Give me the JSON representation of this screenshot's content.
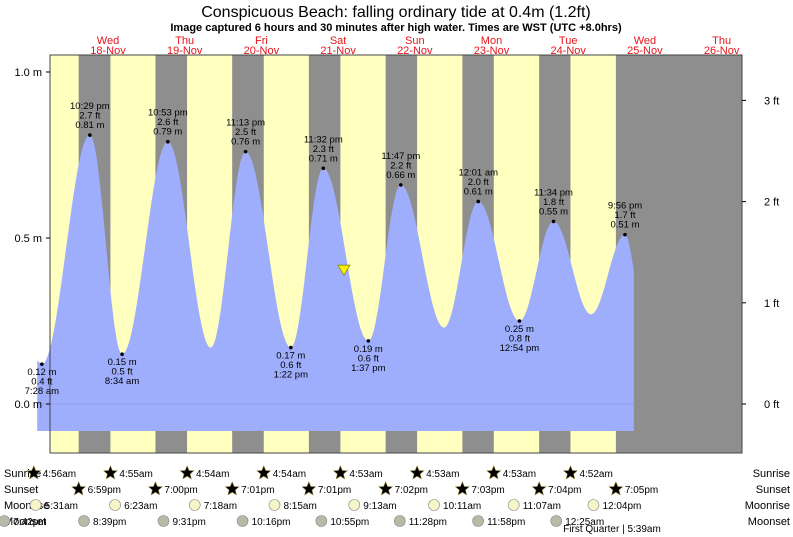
{
  "chart_data": {
    "type": "area",
    "title": "Conspicuous Beach: falling  ordinary tide at 0.4m (1.2ft)",
    "subtitle": "Image captured 6 hours and 30 minutes after high water. Times are WST (UTC +8.0hrs)",
    "y_left_ticks": [
      {
        "value": 1.0,
        "label": "1.0 m"
      },
      {
        "value": 0.5,
        "label": "0.5 m"
      },
      {
        "value": 0.0,
        "label": "0.0 m"
      }
    ],
    "y_right_ticks": [
      {
        "value": 0.9144,
        "label": "3 ft"
      },
      {
        "value": 0.6096,
        "label": "2 ft"
      },
      {
        "value": 0.3048,
        "label": "1 ft"
      },
      {
        "value": 0.0,
        "label": "0 ft"
      }
    ],
    "ylim": [
      -0.08,
      1.04
    ],
    "days": [
      {
        "day": "Wed",
        "date": "18-Nov"
      },
      {
        "day": "Thu",
        "date": "19-Nov"
      },
      {
        "day": "Fri",
        "date": "20-Nov"
      },
      {
        "day": "Sat",
        "date": "21-Nov"
      },
      {
        "day": "Sun",
        "date": "22-Nov"
      },
      {
        "day": "Mon",
        "date": "23-Nov"
      },
      {
        "day": "Tue",
        "date": "24-Nov"
      },
      {
        "day": "Wed",
        "date": "25-Nov"
      },
      {
        "day": "Thu",
        "date": "26-Nov"
      }
    ],
    "tide_events": [
      {
        "type": "low",
        "day": 0,
        "time": "7:28 am",
        "height_m": "0.12 m",
        "height_ft": "0.4 ft",
        "m": 0.12,
        "hour": 7.47
      },
      {
        "type": "high",
        "day": 0,
        "time": "10:29 pm",
        "height_m": "0.81 m",
        "height_ft": "2.7 ft",
        "m": 0.81,
        "hour": 22.48
      },
      {
        "type": "low",
        "day": 1,
        "time": "8:34 am",
        "height_m": "0.15 m",
        "height_ft": "0.5 ft",
        "m": 0.15,
        "hour": 8.57
      },
      {
        "type": "high",
        "day": 1,
        "time": "10:53 pm",
        "height_m": "0.79 m",
        "height_ft": "2.6 ft",
        "m": 0.79,
        "hour": 22.88
      },
      {
        "type": "high",
        "day": 2,
        "time": "11:13 pm",
        "height_m": "0.76 m",
        "height_ft": "2.5 ft",
        "m": 0.76,
        "hour": 23.22
      },
      {
        "type": "low",
        "day": 3,
        "time": "1:22 pm",
        "height_m": "0.17 m",
        "height_ft": "0.6 ft",
        "m": 0.17,
        "hour": 13.37
      },
      {
        "type": "high",
        "day": 3,
        "time": "11:32 pm",
        "height_m": "0.71 m",
        "height_ft": "2.3 ft",
        "m": 0.71,
        "hour": 23.53
      },
      {
        "type": "low",
        "day": 4,
        "time": "1:37 pm",
        "height_m": "0.19 m",
        "height_ft": "0.6 ft",
        "m": 0.19,
        "hour": 13.62
      },
      {
        "type": "high",
        "day": 4,
        "time": "11:47 pm",
        "height_m": "0.66 m",
        "height_ft": "2.2 ft",
        "m": 0.66,
        "hour": 23.78
      },
      {
        "type": "high",
        "day": 6,
        "time": "12:01 am",
        "height_m": "0.61 m",
        "height_ft": "2.0 ft",
        "m": 0.61,
        "hour": 0.02
      },
      {
        "type": "low",
        "day": 6,
        "time": "12:54 pm",
        "height_m": "0.25 m",
        "height_ft": "0.8 ft",
        "m": 0.25,
        "hour": 12.9
      },
      {
        "type": "high",
        "day": 6,
        "time": "11:34 pm",
        "height_m": "0.55 m",
        "height_ft": "1.8 ft",
        "m": 0.55,
        "hour": 23.57
      },
      {
        "type": "high",
        "day": 7,
        "time": "9:56 pm",
        "height_m": "0.51 m",
        "height_ft": "1.7 ft",
        "m": 0.51,
        "hour": 21.93
      }
    ],
    "extra_extrema": [
      {
        "type": "low",
        "day": 2,
        "hour": 12.3,
        "m": 0.17
      },
      {
        "type": "low",
        "day": 5,
        "hour": 13.3,
        "m": 0.23
      },
      {
        "type": "low",
        "day": 7,
        "hour": 11.3,
        "m": 0.27
      }
    ],
    "current": {
      "m": 0.4,
      "day": 4,
      "hour": 6.0
    },
    "series_start": {
      "day": 0,
      "hour": 6.0,
      "m": 0.13
    },
    "series_end": {
      "day": 7,
      "hour": 24.7,
      "m": 0.4
    },
    "rows": [
      {
        "label": "Sunrise",
        "kind": "sunrise",
        "items": [
          {
            "day": 0,
            "time": "4:56am",
            "hour": 4.93
          },
          {
            "day": 1,
            "time": "4:55am",
            "hour": 4.92
          },
          {
            "day": 2,
            "time": "4:54am",
            "hour": 4.9
          },
          {
            "day": 3,
            "time": "4:54am",
            "hour": 4.9
          },
          {
            "day": 4,
            "time": "4:53am",
            "hour": 4.88
          },
          {
            "day": 5,
            "time": "4:53am",
            "hour": 4.88
          },
          {
            "day": 6,
            "time": "4:53am",
            "hour": 4.88
          },
          {
            "day": 7,
            "time": "4:52am",
            "hour": 4.87
          }
        ]
      },
      {
        "label": "Sunset",
        "kind": "sunset",
        "items": [
          {
            "day": 0,
            "time": "6:59pm",
            "hour": 18.98
          },
          {
            "day": 1,
            "time": "7:00pm",
            "hour": 19.0
          },
          {
            "day": 2,
            "time": "7:01pm",
            "hour": 19.02
          },
          {
            "day": 3,
            "time": "7:01pm",
            "hour": 19.02
          },
          {
            "day": 4,
            "time": "7:02pm",
            "hour": 19.03
          },
          {
            "day": 5,
            "time": "7:03pm",
            "hour": 19.05
          },
          {
            "day": 6,
            "time": "7:04pm",
            "hour": 19.07
          },
          {
            "day": 7,
            "time": "7:05pm",
            "hour": 19.08
          }
        ]
      },
      {
        "label": "Moonrise",
        "kind": "moonrise",
        "items": [
          {
            "day": 0,
            "time": "5:31am",
            "hour": 5.52
          },
          {
            "day": 1,
            "time": "6:23am",
            "hour": 6.38
          },
          {
            "day": 2,
            "time": "7:18am",
            "hour": 7.3
          },
          {
            "day": 3,
            "time": "8:15am",
            "hour": 8.25
          },
          {
            "day": 4,
            "time": "9:13am",
            "hour": 9.22
          },
          {
            "day": 5,
            "time": "10:11am",
            "hour": 10.18
          },
          {
            "day": 6,
            "time": "11:07am",
            "hour": 11.12
          },
          {
            "day": 7,
            "time": "12:04pm",
            "hour": 12.07
          }
        ]
      },
      {
        "label": "Moonset",
        "kind": "moonset",
        "items": [
          {
            "day": -1,
            "time": "7:42pm",
            "hour": 19.7
          },
          {
            "day": 0,
            "time": "8:39pm",
            "hour": 20.65
          },
          {
            "day": 1,
            "time": "9:31pm",
            "hour": 21.52
          },
          {
            "day": 2,
            "time": "10:16pm",
            "hour": 22.27
          },
          {
            "day": 3,
            "time": "10:55pm",
            "hour": 22.92
          },
          {
            "day": 4,
            "time": "11:28pm",
            "hour": 23.47
          },
          {
            "day": 5,
            "time": "11:58pm",
            "hour": 23.97
          },
          {
            "day": 7,
            "time": "12:25am",
            "hour": 0.42
          }
        ]
      }
    ],
    "moon_phase": "First Quarter | 5:39am",
    "colors": {
      "night": "#8e8e8e",
      "day": "#ffffc0",
      "tide": "#9eaefc",
      "day_label": "#e8141b",
      "marker": "#ffee00",
      "sun_icon": "#d8c63c",
      "sunset_icon": "#d97a2a",
      "moon_icon": "#f6f6c8",
      "moonset_icon": "#b9b9a8"
    }
  }
}
